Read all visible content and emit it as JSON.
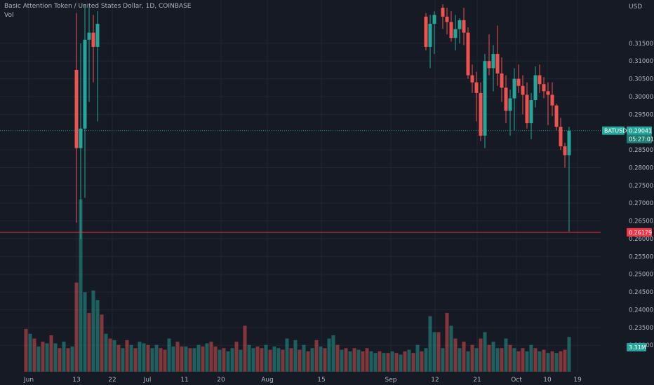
{
  "symbol_title": "Basic Attention Token / United States Dollar, 1D, COINBASE",
  "volume_label": "Vol",
  "price_axis": {
    "currency": "USD",
    "ticks": [
      "0.31500",
      "0.31000",
      "0.30500",
      "0.30000",
      "0.29500",
      "0.28500",
      "0.28000",
      "0.27500",
      "0.27000",
      "0.26500",
      "0.26000",
      "0.25500",
      "0.25000",
      "0.24500",
      "0.24000",
      "0.23500",
      "0.23000"
    ]
  },
  "time_axis": {
    "ticks": [
      "Jun",
      "13",
      "22",
      "Jul",
      "11",
      "20",
      "Aug",
      "15",
      "Sep",
      "12",
      "21",
      "Oct",
      "10",
      "19"
    ]
  },
  "badges": {
    "symbol": "BATUSD",
    "last_price": "0.29041",
    "countdown": "05:27:01",
    "line_price": "0.26179",
    "volume": "3.31M"
  },
  "colors": {
    "background": "#161a25",
    "up": "#26a69a",
    "down": "#ef5350",
    "grid": "#232632",
    "horizontal_line": "#f23645"
  },
  "chart_data": {
    "type": "candlestick",
    "y_scale": {
      "min": 0.2265,
      "max": 0.3195
    },
    "last_price": 0.29041,
    "horizontal_line": 0.26179,
    "volume_last": "3.31M",
    "candles": [
      {
        "day": 13,
        "o": 0.3075,
        "h": 0.3235,
        "l": 0.2645,
        "c": 0.2855
      },
      {
        "day": 14,
        "o": 0.2855,
        "h": 0.315,
        "l": 0.26,
        "c": 0.291
      },
      {
        "day": 15,
        "o": 0.291,
        "h": 0.326,
        "l": 0.2715,
        "c": 0.316
      },
      {
        "day": 16,
        "o": 0.316,
        "h": 0.325,
        "l": 0.2985,
        "c": 0.318
      },
      {
        "day": 17,
        "o": 0.318,
        "h": 0.323,
        "l": 0.304,
        "c": 0.314
      },
      {
        "day": 18,
        "o": 0.314,
        "h": 0.324,
        "l": 0.293,
        "c": 0.3205
      },
      {
        "day": 96,
        "o": 0.3225,
        "h": 0.3235,
        "l": 0.313,
        "c": 0.314
      },
      {
        "day": 97,
        "o": 0.314,
        "h": 0.323,
        "l": 0.308,
        "c": 0.3205
      },
      {
        "day": 98,
        "o": 0.3205,
        "h": 0.324,
        "l": 0.312,
        "c": 0.323
      },
      {
        "day": 100,
        "o": 0.325,
        "h": 0.326,
        "l": 0.319,
        "c": 0.3225
      },
      {
        "day": 101,
        "o": 0.3225,
        "h": 0.325,
        "l": 0.3175,
        "c": 0.321
      },
      {
        "day": 102,
        "o": 0.321,
        "h": 0.324,
        "l": 0.3155,
        "c": 0.3165
      },
      {
        "day": 103,
        "o": 0.3165,
        "h": 0.323,
        "l": 0.313,
        "c": 0.319
      },
      {
        "day": 104,
        "o": 0.319,
        "h": 0.322,
        "l": 0.315,
        "c": 0.3215
      },
      {
        "day": 105,
        "o": 0.3215,
        "h": 0.325,
        "l": 0.3145,
        "c": 0.318
      },
      {
        "day": 106,
        "o": 0.318,
        "h": 0.3195,
        "l": 0.305,
        "c": 0.306
      },
      {
        "day": 107,
        "o": 0.306,
        "h": 0.309,
        "l": 0.301,
        "c": 0.304
      },
      {
        "day": 108,
        "o": 0.304,
        "h": 0.307,
        "l": 0.293,
        "c": 0.301
      },
      {
        "day": 109,
        "o": 0.301,
        "h": 0.304,
        "l": 0.2875,
        "c": 0.289
      },
      {
        "day": 110,
        "o": 0.289,
        "h": 0.312,
        "l": 0.2855,
        "c": 0.31
      },
      {
        "day": 111,
        "o": 0.31,
        "h": 0.3175,
        "l": 0.306,
        "c": 0.308
      },
      {
        "day": 112,
        "o": 0.308,
        "h": 0.3145,
        "l": 0.3015,
        "c": 0.312
      },
      {
        "day": 113,
        "o": 0.312,
        "h": 0.32,
        "l": 0.303,
        "c": 0.3065
      },
      {
        "day": 114,
        "o": 0.3065,
        "h": 0.311,
        "l": 0.2985,
        "c": 0.3025
      },
      {
        "day": 115,
        "o": 0.3025,
        "h": 0.306,
        "l": 0.2925,
        "c": 0.296
      },
      {
        "day": 116,
        "o": 0.296,
        "h": 0.302,
        "l": 0.289,
        "c": 0.2995
      },
      {
        "day": 117,
        "o": 0.2995,
        "h": 0.308,
        "l": 0.2905,
        "c": 0.305
      },
      {
        "day": 118,
        "o": 0.305,
        "h": 0.309,
        "l": 0.301,
        "c": 0.303
      },
      {
        "day": 119,
        "o": 0.303,
        "h": 0.306,
        "l": 0.295,
        "c": 0.3005
      },
      {
        "day": 120,
        "o": 0.3005,
        "h": 0.304,
        "l": 0.291,
        "c": 0.2925
      },
      {
        "day": 121,
        "o": 0.2925,
        "h": 0.301,
        "l": 0.288,
        "c": 0.299
      },
      {
        "day": 122,
        "o": 0.299,
        "h": 0.3085,
        "l": 0.297,
        "c": 0.306
      },
      {
        "day": 123,
        "o": 0.306,
        "h": 0.309,
        "l": 0.301,
        "c": 0.3035
      },
      {
        "day": 124,
        "o": 0.3035,
        "h": 0.3055,
        "l": 0.2995,
        "c": 0.3015
      },
      {
        "day": 125,
        "o": 0.3015,
        "h": 0.304,
        "l": 0.292,
        "c": 0.3005
      },
      {
        "day": 126,
        "o": 0.3005,
        "h": 0.304,
        "l": 0.2945,
        "c": 0.2975
      },
      {
        "day": 127,
        "o": 0.2975,
        "h": 0.298,
        "l": 0.2905,
        "c": 0.2915
      },
      {
        "day": 128,
        "o": 0.2915,
        "h": 0.294,
        "l": 0.285,
        "c": 0.286
      },
      {
        "day": 129,
        "o": 0.286,
        "h": 0.287,
        "l": 0.28,
        "c": 0.2835
      },
      {
        "day": 130,
        "o": 0.2835,
        "h": 0.2915,
        "l": 0.262,
        "c": 0.2904
      }
    ],
    "volumes": [
      {
        "day": 1,
        "v": 0.09,
        "up": false
      },
      {
        "day": 2,
        "v": 0.075,
        "up": true
      },
      {
        "day": 3,
        "v": 0.06,
        "up": false
      },
      {
        "day": 4,
        "v": 0.035,
        "up": true
      },
      {
        "day": 5,
        "v": 0.05,
        "up": false
      },
      {
        "day": 6,
        "v": 0.045,
        "up": true
      },
      {
        "day": 7,
        "v": 0.07,
        "up": false
      },
      {
        "day": 8,
        "v": 0.045,
        "up": true
      },
      {
        "day": 9,
        "v": 0.03,
        "up": false
      },
      {
        "day": 10,
        "v": 0.05,
        "up": true
      },
      {
        "day": 11,
        "v": 0.03,
        "up": false
      },
      {
        "day": 12,
        "v": 0.035,
        "up": true
      },
      {
        "day": 13,
        "v": 0.235,
        "up": false
      },
      {
        "day": 14,
        "v": 0.495,
        "up": true
      },
      {
        "day": 15,
        "v": 0.205,
        "up": true
      },
      {
        "day": 16,
        "v": 0.14,
        "up": false
      },
      {
        "day": 17,
        "v": 0.21,
        "up": true
      },
      {
        "day": 18,
        "v": 0.18,
        "up": true
      },
      {
        "day": 19,
        "v": 0.135,
        "up": false
      },
      {
        "day": 20,
        "v": 0.075,
        "up": true
      },
      {
        "day": 21,
        "v": 0.06,
        "up": false
      },
      {
        "day": 22,
        "v": 0.055,
        "up": true
      },
      {
        "day": 23,
        "v": 0.04,
        "up": false
      },
      {
        "day": 24,
        "v": 0.03,
        "up": true
      },
      {
        "day": 25,
        "v": 0.055,
        "up": false
      },
      {
        "day": 26,
        "v": 0.04,
        "up": true
      },
      {
        "day": 27,
        "v": 0.03,
        "up": false
      },
      {
        "day": 28,
        "v": 0.05,
        "up": true
      },
      {
        "day": 29,
        "v": 0.045,
        "up": true
      },
      {
        "day": 30,
        "v": 0.04,
        "up": false
      },
      {
        "day": 31,
        "v": 0.03,
        "up": true
      },
      {
        "day": 32,
        "v": 0.04,
        "up": true
      },
      {
        "day": 33,
        "v": 0.03,
        "up": false
      },
      {
        "day": 34,
        "v": 0.025,
        "up": false
      },
      {
        "day": 35,
        "v": 0.06,
        "up": true
      },
      {
        "day": 36,
        "v": 0.035,
        "up": true
      },
      {
        "day": 37,
        "v": 0.05,
        "up": false
      },
      {
        "day": 38,
        "v": 0.035,
        "up": false
      },
      {
        "day": 39,
        "v": 0.035,
        "up": true
      },
      {
        "day": 40,
        "v": 0.03,
        "up": false
      },
      {
        "day": 41,
        "v": 0.03,
        "up": true
      },
      {
        "day": 42,
        "v": 0.04,
        "up": true
      },
      {
        "day": 43,
        "v": 0.035,
        "up": false
      },
      {
        "day": 44,
        "v": 0.045,
        "up": true
      },
      {
        "day": 45,
        "v": 0.05,
        "up": false
      },
      {
        "day": 46,
        "v": 0.035,
        "up": false
      },
      {
        "day": 47,
        "v": 0.025,
        "up": true
      },
      {
        "day": 48,
        "v": 0.03,
        "up": false
      },
      {
        "day": 49,
        "v": 0.02,
        "up": true
      },
      {
        "day": 50,
        "v": 0.03,
        "up": true
      },
      {
        "day": 51,
        "v": 0.05,
        "up": false
      },
      {
        "day": 52,
        "v": 0.025,
        "up": true
      },
      {
        "day": 53,
        "v": 0.1,
        "up": false
      },
      {
        "day": 54,
        "v": 0.04,
        "up": true
      },
      {
        "day": 55,
        "v": 0.03,
        "up": true
      },
      {
        "day": 56,
        "v": 0.035,
        "up": false
      },
      {
        "day": 57,
        "v": 0.03,
        "up": false
      },
      {
        "day": 58,
        "v": 0.04,
        "up": true
      },
      {
        "day": 59,
        "v": 0.025,
        "up": false
      },
      {
        "day": 60,
        "v": 0.035,
        "up": true
      },
      {
        "day": 61,
        "v": 0.03,
        "up": true
      },
      {
        "day": 62,
        "v": 0.025,
        "up": false
      },
      {
        "day": 63,
        "v": 0.06,
        "up": true
      },
      {
        "day": 64,
        "v": 0.03,
        "up": false
      },
      {
        "day": 65,
        "v": 0.055,
        "up": true
      },
      {
        "day": 66,
        "v": 0.025,
        "up": false
      },
      {
        "day": 67,
        "v": 0.04,
        "up": true
      },
      {
        "day": 68,
        "v": 0.02,
        "up": false
      },
      {
        "day": 69,
        "v": 0.03,
        "up": true
      },
      {
        "day": 70,
        "v": 0.055,
        "up": false
      },
      {
        "day": 71,
        "v": 0.035,
        "up": true
      },
      {
        "day": 72,
        "v": 0.03,
        "up": false
      },
      {
        "day": 73,
        "v": 0.06,
        "up": true
      },
      {
        "day": 74,
        "v": 0.07,
        "up": true
      },
      {
        "day": 75,
        "v": 0.04,
        "up": false
      },
      {
        "day": 76,
        "v": 0.025,
        "up": true
      },
      {
        "day": 77,
        "v": 0.03,
        "up": false
      },
      {
        "day": 78,
        "v": 0.02,
        "up": true
      },
      {
        "day": 79,
        "v": 0.03,
        "up": false
      },
      {
        "day": 80,
        "v": 0.025,
        "up": true
      },
      {
        "day": 81,
        "v": 0.02,
        "up": false
      },
      {
        "day": 82,
        "v": 0.03,
        "up": false
      },
      {
        "day": 83,
        "v": 0.02,
        "up": true
      },
      {
        "day": 84,
        "v": 0.015,
        "up": true
      },
      {
        "day": 85,
        "v": 0.02,
        "up": false
      },
      {
        "day": 86,
        "v": 0.015,
        "up": true
      },
      {
        "day": 87,
        "v": 0.015,
        "up": false
      },
      {
        "day": 88,
        "v": 0.02,
        "up": true
      },
      {
        "day": 89,
        "v": 0.015,
        "up": false
      },
      {
        "day": 90,
        "v": 0.01,
        "up": true
      },
      {
        "day": 91,
        "v": 0.02,
        "up": false
      },
      {
        "day": 92,
        "v": 0.025,
        "up": true
      },
      {
        "day": 93,
        "v": 0.015,
        "up": false
      },
      {
        "day": 94,
        "v": 0.04,
        "up": true
      },
      {
        "day": 95,
        "v": 0.02,
        "up": false
      },
      {
        "day": 96,
        "v": 0.03,
        "up": true
      },
      {
        "day": 97,
        "v": 0.13,
        "up": true
      },
      {
        "day": 98,
        "v": 0.08,
        "up": true
      },
      {
        "day": 99,
        "v": 0.08,
        "up": false
      },
      {
        "day": 100,
        "v": 0.03,
        "up": true
      },
      {
        "day": 101,
        "v": 0.14,
        "up": false
      },
      {
        "day": 102,
        "v": 0.1,
        "up": true
      },
      {
        "day": 103,
        "v": 0.06,
        "up": false
      },
      {
        "day": 104,
        "v": 0.03,
        "up": true
      },
      {
        "day": 105,
        "v": 0.05,
        "up": false
      },
      {
        "day": 106,
        "v": 0.02,
        "up": true
      },
      {
        "day": 107,
        "v": 0.04,
        "up": false
      },
      {
        "day": 108,
        "v": 0.03,
        "up": true
      },
      {
        "day": 109,
        "v": 0.06,
        "up": false
      },
      {
        "day": 110,
        "v": 0.08,
        "up": true
      },
      {
        "day": 111,
        "v": 0.04,
        "up": false
      },
      {
        "day": 112,
        "v": 0.05,
        "up": true
      },
      {
        "day": 113,
        "v": 0.03,
        "up": true
      },
      {
        "day": 114,
        "v": 0.03,
        "up": false
      },
      {
        "day": 115,
        "v": 0.06,
        "up": true
      },
      {
        "day": 116,
        "v": 0.04,
        "up": false
      },
      {
        "day": 117,
        "v": 0.03,
        "up": true
      },
      {
        "day": 118,
        "v": 0.02,
        "up": false
      },
      {
        "day": 119,
        "v": 0.03,
        "up": false
      },
      {
        "day": 120,
        "v": 0.02,
        "up": true
      },
      {
        "day": 121,
        "v": 0.04,
        "up": true
      },
      {
        "day": 122,
        "v": 0.03,
        "up": false
      },
      {
        "day": 123,
        "v": 0.02,
        "up": true
      },
      {
        "day": 124,
        "v": 0.025,
        "up": false
      },
      {
        "day": 125,
        "v": 0.015,
        "up": true
      },
      {
        "day": 126,
        "v": 0.02,
        "up": false
      },
      {
        "day": 127,
        "v": 0.015,
        "up": true
      },
      {
        "day": 128,
        "v": 0.02,
        "up": false
      },
      {
        "day": 129,
        "v": 0.025,
        "up": false
      },
      {
        "day": 130,
        "v": 0.065,
        "up": true
      }
    ]
  }
}
